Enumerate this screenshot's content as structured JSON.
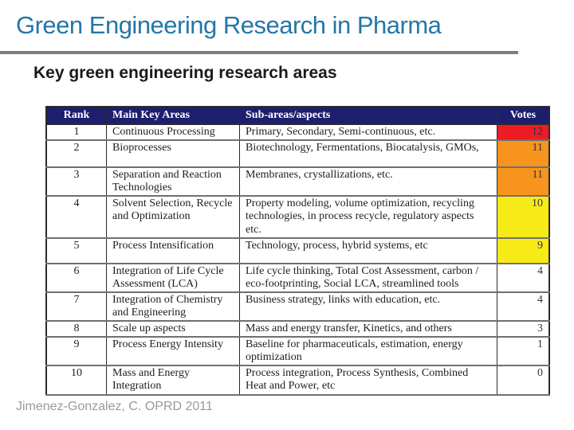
{
  "slide": {
    "title": "Green Engineering Research in Pharma",
    "subtitle": "Key green engineering research areas",
    "citation": "Jimenez-Gonzalez, C. OPRD 2011"
  },
  "table": {
    "columns": [
      "Rank",
      "Main Key Areas",
      "Sub-areas/aspects",
      "Votes"
    ],
    "rows": [
      {
        "rank": "1",
        "area": "Continuous Processing",
        "sub": "Primary, Secondary, Semi-continuous, etc.",
        "votes": "12",
        "votes_color": "#ED1C24"
      },
      {
        "rank": "2",
        "area": "Bioprocesses",
        "sub": "Biotechnology, Fermentations, Biocatalysis, GMOs,",
        "votes": "11",
        "votes_color": "#F7941E"
      },
      {
        "rank": "3",
        "area": "Separation and Reaction Technologies",
        "sub": "Membranes, crystallizations, etc.",
        "votes": "11",
        "votes_color": "#F7941E"
      },
      {
        "rank": "4",
        "area": "Solvent Selection, Recycle and Optimization",
        "sub": "Property modeling, volume optimization, recycling technologies, in process recycle, regulatory aspects etc.",
        "votes": "10",
        "votes_color": "#F6EB16"
      },
      {
        "rank": "5",
        "area": "Process Intensification",
        "sub": "Technology, process, hybrid systems, etc",
        "votes": "9",
        "votes_color": "#F6EB16"
      },
      {
        "rank": "6",
        "area": "Integration of Life Cycle Assessment (LCA)",
        "sub": "Life cycle thinking, Total Cost Assessment, carbon / eco-footprinting, Social LCA, streamlined tools",
        "votes": "4",
        "votes_color": ""
      },
      {
        "rank": "7",
        "area": "Integration of Chemistry and Engineering",
        "sub": "Business strategy, links with education, etc.",
        "votes": "4",
        "votes_color": ""
      },
      {
        "rank": "8",
        "area": "Scale up aspects",
        "sub": "Mass and energy transfer, Kinetics, and others",
        "votes": "3",
        "votes_color": ""
      },
      {
        "rank": "9",
        "area": "Process Energy Intensity",
        "sub": "Baseline for pharmaceuticals, estimation, energy optimization",
        "votes": "1",
        "votes_color": ""
      },
      {
        "rank": "10",
        "area": "Mass and Energy Integration",
        "sub": "Process integration, Process Synthesis, Combined Heat and Power, etc",
        "votes": "0",
        "votes_color": ""
      }
    ]
  },
  "colors": {
    "title_blue": "#2577A8",
    "rule_gray": "#7F7F7F",
    "header_navy": "#1E1E6E",
    "vote_red": "#ED1C24",
    "vote_orange": "#F7941E",
    "vote_yellow": "#F6EB16",
    "citation_gray": "#9A9A9A"
  }
}
